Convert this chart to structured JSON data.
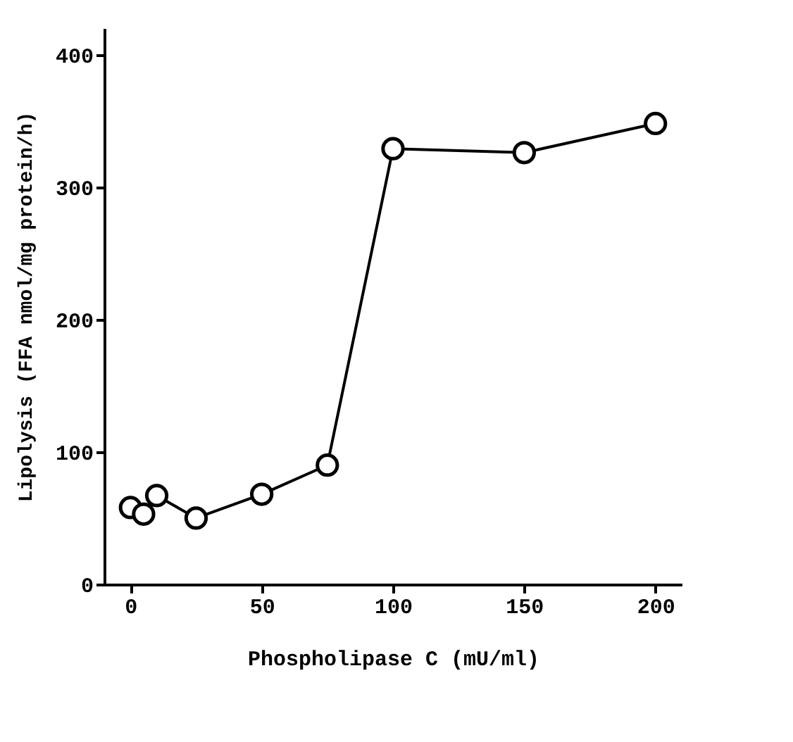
{
  "chart_data": {
    "type": "line",
    "xlabel": "Phospholipase C (mU/ml)",
    "ylabel": "Lipolysis (FFA nmol/mg protein/h)",
    "x": [
      0,
      5,
      10,
      25,
      50,
      75,
      100,
      150,
      200
    ],
    "series": [
      {
        "color": "#000000",
        "values": [
          58,
          53,
          67,
          50,
          68,
          90,
          329,
          326,
          348
        ]
      }
    ],
    "xlim": [
      -10,
      210
    ],
    "xticks": [
      0,
      50,
      100,
      150,
      200
    ],
    "ylim": [
      0,
      420
    ],
    "yticks": [
      0,
      100,
      200,
      300,
      400
    ],
    "marker": "circle",
    "line_style": "solid",
    "grid": false
  }
}
